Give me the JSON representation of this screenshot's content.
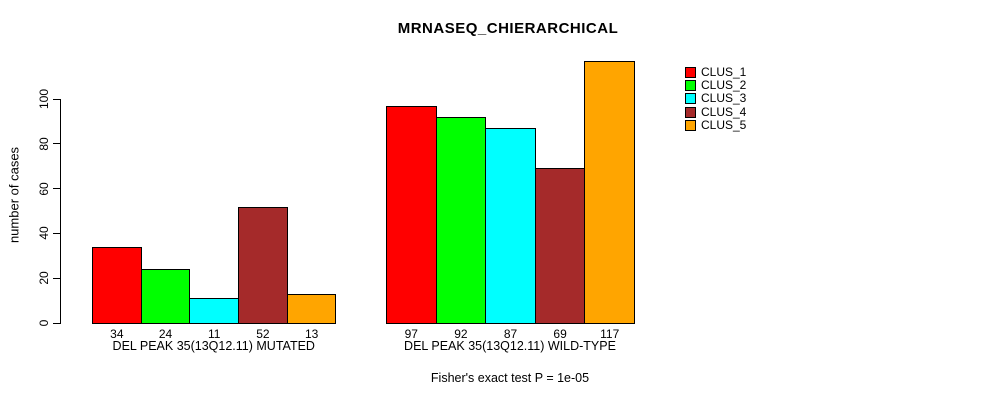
{
  "chart_data": {
    "type": "bar",
    "title": "MRNASEQ_CHIERARCHICAL",
    "ylabel": "number of cases",
    "xlabel": "",
    "ylim": [
      0,
      120
    ],
    "yticks": [
      0,
      20,
      40,
      60,
      80,
      100
    ],
    "grid": false,
    "legend_position": "right",
    "categories": [
      "DEL PEAK 35(13Q12.11) MUTATED",
      "DEL PEAK 35(13Q12.11) WILD-TYPE"
    ],
    "series": [
      {
        "name": "CLUS_1",
        "color": "#ff0000",
        "values": [
          34,
          97
        ]
      },
      {
        "name": "CLUS_2",
        "color": "#00ff00",
        "values": [
          24,
          92
        ]
      },
      {
        "name": "CLUS_3",
        "color": "#00ffff",
        "values": [
          11,
          87
        ]
      },
      {
        "name": "CLUS_4",
        "color": "#a52a2a",
        "values": [
          52,
          69
        ]
      },
      {
        "name": "CLUS_5",
        "color": "#ffa500",
        "values": [
          13,
          117
        ]
      }
    ],
    "bar_value_labels_shown": true,
    "footnote": "Fisher's exact test P = 1e-05"
  }
}
